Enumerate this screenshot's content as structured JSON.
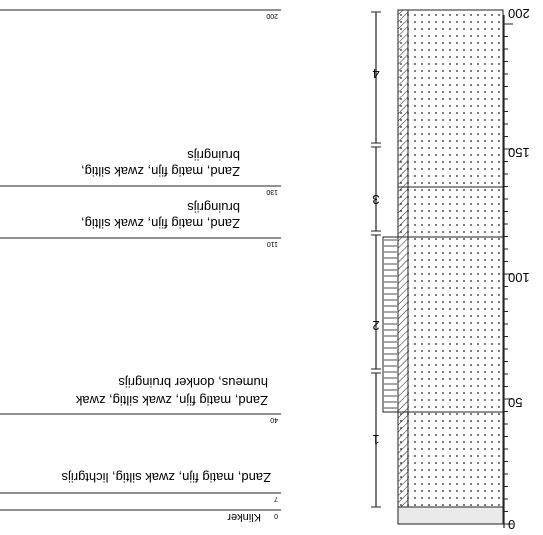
{
  "log": {
    "depth_labels": [
      "0",
      "50",
      "100",
      "150",
      "200"
    ],
    "unit_labels": [
      "1",
      "2",
      "3",
      "4"
    ]
  },
  "layers": [
    {
      "top": "0",
      "description_line1": "Klinker",
      "description_line2": ""
    },
    {
      "top": "7",
      "description_line1": "Zand, matig fijn, zwak siltig, lichtgrijs",
      "description_line2": ""
    },
    {
      "top": "40",
      "description_line1": "Zand, matig fijn, zwak siltig, zwak",
      "description_line2": "humeus, donker bruingrijs"
    },
    {
      "top": "110",
      "description_line1": "Zand, matig fijn, zwak siltig,",
      "description_line2": "bruingrijs"
    },
    {
      "top": "130",
      "description_line1": "Zand, matig fijn, zwak siltig,",
      "description_line2": "bruingrijs"
    },
    {
      "top": "200",
      "description_line1": "",
      "description_line2": ""
    }
  ]
}
